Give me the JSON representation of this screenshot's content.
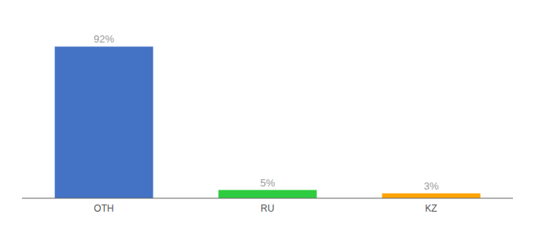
{
  "chart_data": {
    "type": "bar",
    "categories": [
      "OTH",
      "RU",
      "KZ"
    ],
    "values": [
      92,
      5,
      3
    ],
    "value_labels": [
      "92%",
      "5%",
      "3%"
    ],
    "colors": [
      "#4472C4",
      "#2ECC40",
      "#FFA500"
    ],
    "ylim": [
      0,
      105
    ],
    "data_labels": true,
    "tick_labels": "x",
    "grid": false
  }
}
